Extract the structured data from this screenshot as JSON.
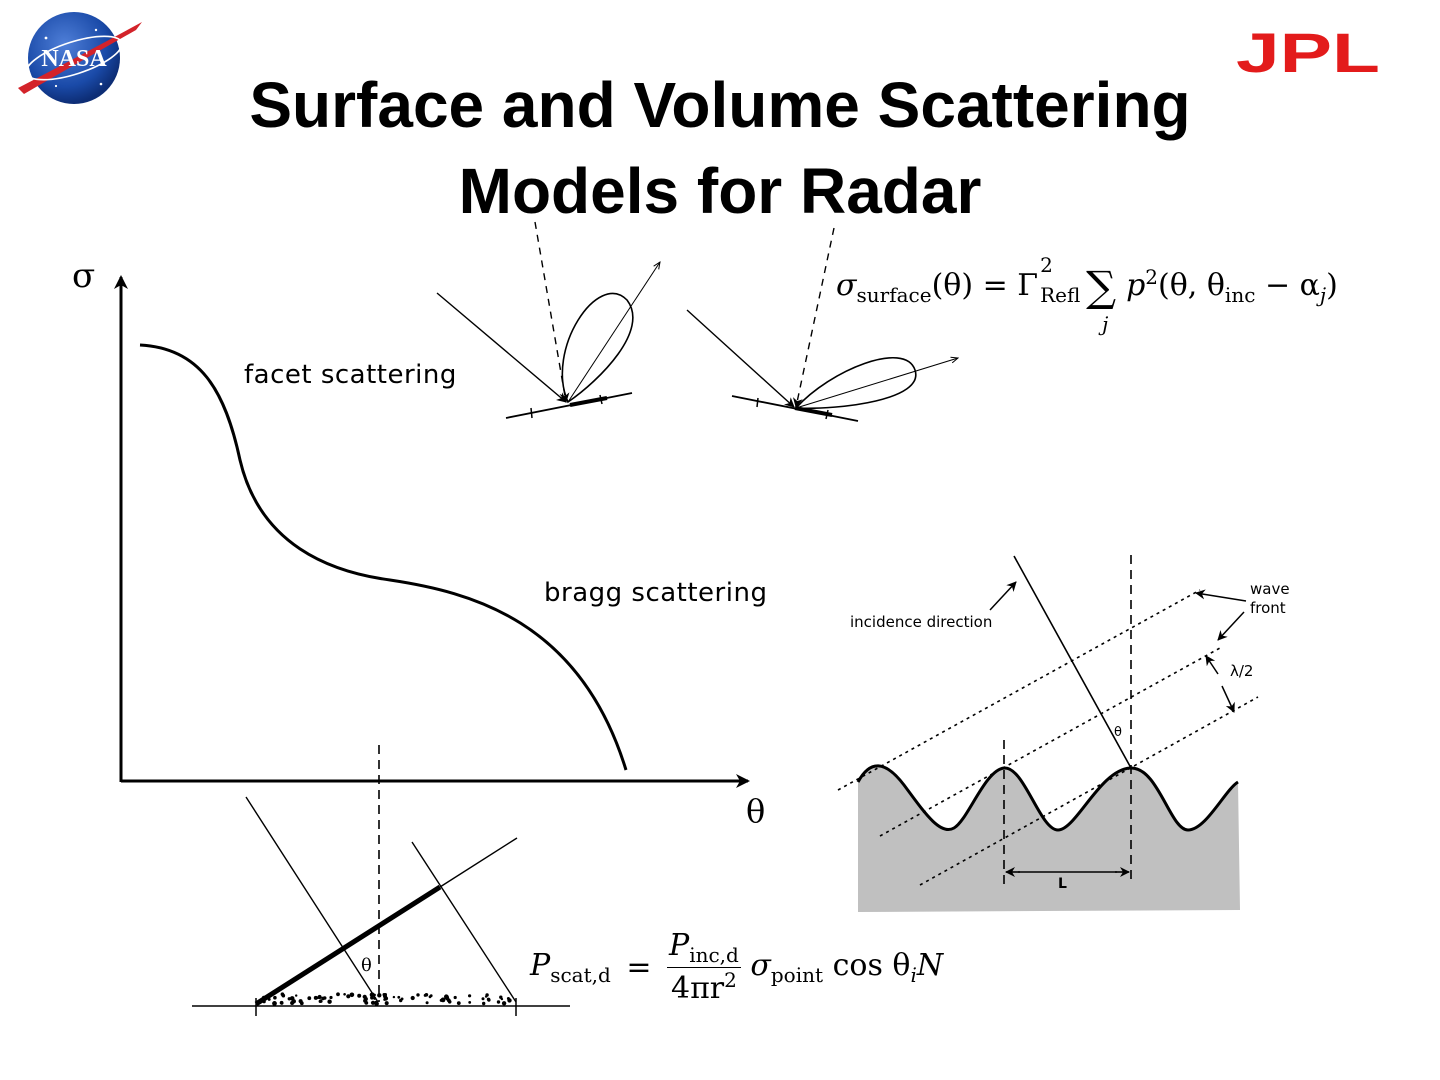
{
  "slide": {
    "title_line1": "Surface and Volume Scattering",
    "title_line2": "Models for Radar",
    "logos": {
      "nasa_text": "NASA",
      "jpl_text": "JPL",
      "jpl_color": "#e31b1b",
      "nasa_color": "#1a4aa8"
    }
  },
  "plot": {
    "y_axis_label": "σ",
    "x_axis_label": "θ",
    "annotation_facet": "facet scattering",
    "annotation_bragg": "bragg scattering"
  },
  "formulas": {
    "surface": {
      "sigma": "σ",
      "sigma_sub": "surface",
      "lhs_arg": "(θ) = Γ",
      "gamma_sup": "2",
      "gamma_sub": "Refl",
      "sum": "∑",
      "sum_sub": "j",
      "rhs": "p",
      "p_sup": "2",
      "rhs_args": "(θ, θ",
      "theta_sub": "inc",
      "minus_alpha": " − α",
      "alpha_sub": "j",
      "close": ")"
    },
    "volume": {
      "P": "P",
      "P_sub": "scat,d",
      "equals": "=",
      "num": "P",
      "num_sub": "inc,d",
      "den": "4πr",
      "den_sup": "2",
      "sigma": "σ",
      "sigma_sub": "point",
      "tail": "cos θ",
      "tail_sub": "i",
      "N": "N"
    }
  },
  "bragg_diagram": {
    "incidence_label": "incidence direction",
    "wavefront_label_line1": "wave",
    "wavefront_label_line2": "front",
    "half_wavelength_label": "λ/2",
    "theta_label": "θ",
    "period_label": "L",
    "surface_fill": "#c0c0c0"
  },
  "volume_diagram": {
    "theta_label": "θ"
  }
}
